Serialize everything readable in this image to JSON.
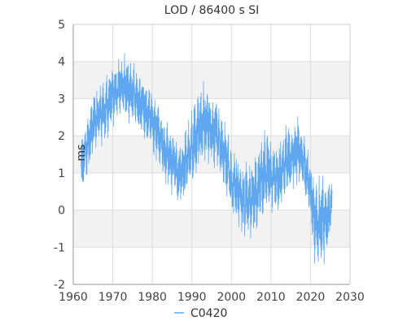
{
  "chart_data": {
    "type": "line",
    "title": "LOD / 86400 s SI",
    "xlabel": "",
    "ylabel": "ms",
    "xlim": [
      1960,
      2030
    ],
    "ylim": [
      -2,
      5
    ],
    "x_ticks": [
      1960,
      1970,
      1980,
      1990,
      2000,
      2010,
      2020,
      2030
    ],
    "y_ticks": [
      -2,
      -1,
      0,
      1,
      2,
      3,
      4,
      5
    ],
    "grid": true,
    "legend": "bottom-center",
    "series": [
      {
        "name": "C0420",
        "color": "#5fa8f0",
        "envelope": [
          {
            "x": 1962.0,
            "low": 0.3,
            "high": 2.0
          },
          {
            "x": 1963.0,
            "low": 0.6,
            "high": 2.6
          },
          {
            "x": 1964.0,
            "low": 1.0,
            "high": 2.9
          },
          {
            "x": 1965.0,
            "low": 1.4,
            "high": 3.2
          },
          {
            "x": 1966.0,
            "low": 1.6,
            "high": 3.4
          },
          {
            "x": 1967.0,
            "low": 1.7,
            "high": 3.6
          },
          {
            "x": 1968.0,
            "low": 1.8,
            "high": 3.7
          },
          {
            "x": 1969.0,
            "low": 2.0,
            "high": 3.8
          },
          {
            "x": 1970.0,
            "low": 2.2,
            "high": 3.9
          },
          {
            "x": 1971.0,
            "low": 2.3,
            "high": 4.1
          },
          {
            "x": 1972.0,
            "low": 2.4,
            "high": 4.35
          },
          {
            "x": 1973.0,
            "low": 2.4,
            "high": 4.3
          },
          {
            "x": 1974.0,
            "low": 2.3,
            "high": 4.2
          },
          {
            "x": 1975.0,
            "low": 2.2,
            "high": 4.1
          },
          {
            "x": 1976.0,
            "low": 2.1,
            "high": 3.9
          },
          {
            "x": 1977.0,
            "low": 2.0,
            "high": 3.7
          },
          {
            "x": 1978.0,
            "low": 1.9,
            "high": 3.6
          },
          {
            "x": 1979.0,
            "low": 1.7,
            "high": 3.5
          },
          {
            "x": 1980.0,
            "low": 1.5,
            "high": 3.3
          },
          {
            "x": 1981.0,
            "low": 1.3,
            "high": 3.1
          },
          {
            "x": 1982.0,
            "low": 1.0,
            "high": 2.9
          },
          {
            "x": 1983.0,
            "low": 0.7,
            "high": 2.6
          },
          {
            "x": 1984.0,
            "low": 0.5,
            "high": 2.4
          },
          {
            "x": 1985.0,
            "low": 0.4,
            "high": 2.2
          },
          {
            "x": 1986.0,
            "low": 0.2,
            "high": 2.1
          },
          {
            "x": 1987.0,
            "low": 0.0,
            "high": 2.0
          },
          {
            "x": 1988.0,
            "low": -0.1,
            "high": 2.2
          },
          {
            "x": 1989.0,
            "low": 0.3,
            "high": 2.6
          },
          {
            "x": 1990.0,
            "low": 0.6,
            "high": 2.9
          },
          {
            "x": 1991.0,
            "low": 0.9,
            "high": 3.1
          },
          {
            "x": 1992.0,
            "low": 1.0,
            "high": 3.5
          },
          {
            "x": 1993.0,
            "low": 1.1,
            "high": 3.6
          },
          {
            "x": 1994.0,
            "low": 1.2,
            "high": 3.4
          },
          {
            "x": 1995.0,
            "low": 1.1,
            "high": 3.3
          },
          {
            "x": 1996.0,
            "low": 1.0,
            "high": 3.2
          },
          {
            "x": 1997.0,
            "low": 0.8,
            "high": 2.9
          },
          {
            "x": 1998.0,
            "low": 0.5,
            "high": 2.6
          },
          {
            "x": 1999.0,
            "low": 0.2,
            "high": 2.2
          },
          {
            "x": 2000.0,
            "low": -0.2,
            "high": 1.7
          },
          {
            "x": 2001.0,
            "low": -0.4,
            "high": 1.6
          },
          {
            "x": 2002.0,
            "low": -0.6,
            "high": 1.5
          },
          {
            "x": 2003.0,
            "low": -0.8,
            "high": 1.4
          },
          {
            "x": 2004.0,
            "low": -0.9,
            "high": 1.3
          },
          {
            "x": 2005.0,
            "low": -1.0,
            "high": 1.4
          },
          {
            "x": 2006.0,
            "low": -0.7,
            "high": 1.6
          },
          {
            "x": 2007.0,
            "low": -0.5,
            "high": 1.8
          },
          {
            "x": 2008.0,
            "low": -0.3,
            "high": 2.3
          },
          {
            "x": 2009.0,
            "low": -0.2,
            "high": 2.2
          },
          {
            "x": 2010.0,
            "low": -0.1,
            "high": 2.0
          },
          {
            "x": 2011.0,
            "low": -0.2,
            "high": 1.8
          },
          {
            "x": 2012.0,
            "low": -0.1,
            "high": 1.9
          },
          {
            "x": 2013.0,
            "low": 0.1,
            "high": 2.2
          },
          {
            "x": 2014.0,
            "low": 0.3,
            "high": 2.4
          },
          {
            "x": 2015.0,
            "low": 0.5,
            "high": 2.3
          },
          {
            "x": 2016.0,
            "low": 0.6,
            "high": 2.5
          },
          {
            "x": 2017.0,
            "low": 0.7,
            "high": 2.6
          },
          {
            "x": 2018.0,
            "low": 0.5,
            "high": 2.2
          },
          {
            "x": 2019.0,
            "low": 0.1,
            "high": 1.9
          },
          {
            "x": 2020.0,
            "low": -0.4,
            "high": 1.5
          },
          {
            "x": 2021.0,
            "low": -1.5,
            "high": 1.0
          },
          {
            "x": 2022.0,
            "low": -1.6,
            "high": 0.9
          },
          {
            "x": 2023.0,
            "low": -1.6,
            "high": 1.2
          },
          {
            "x": 2024.0,
            "low": -1.3,
            "high": 1.0
          },
          {
            "x": 2025.5,
            "low": -0.5,
            "high": 0.8
          }
        ]
      }
    ]
  }
}
